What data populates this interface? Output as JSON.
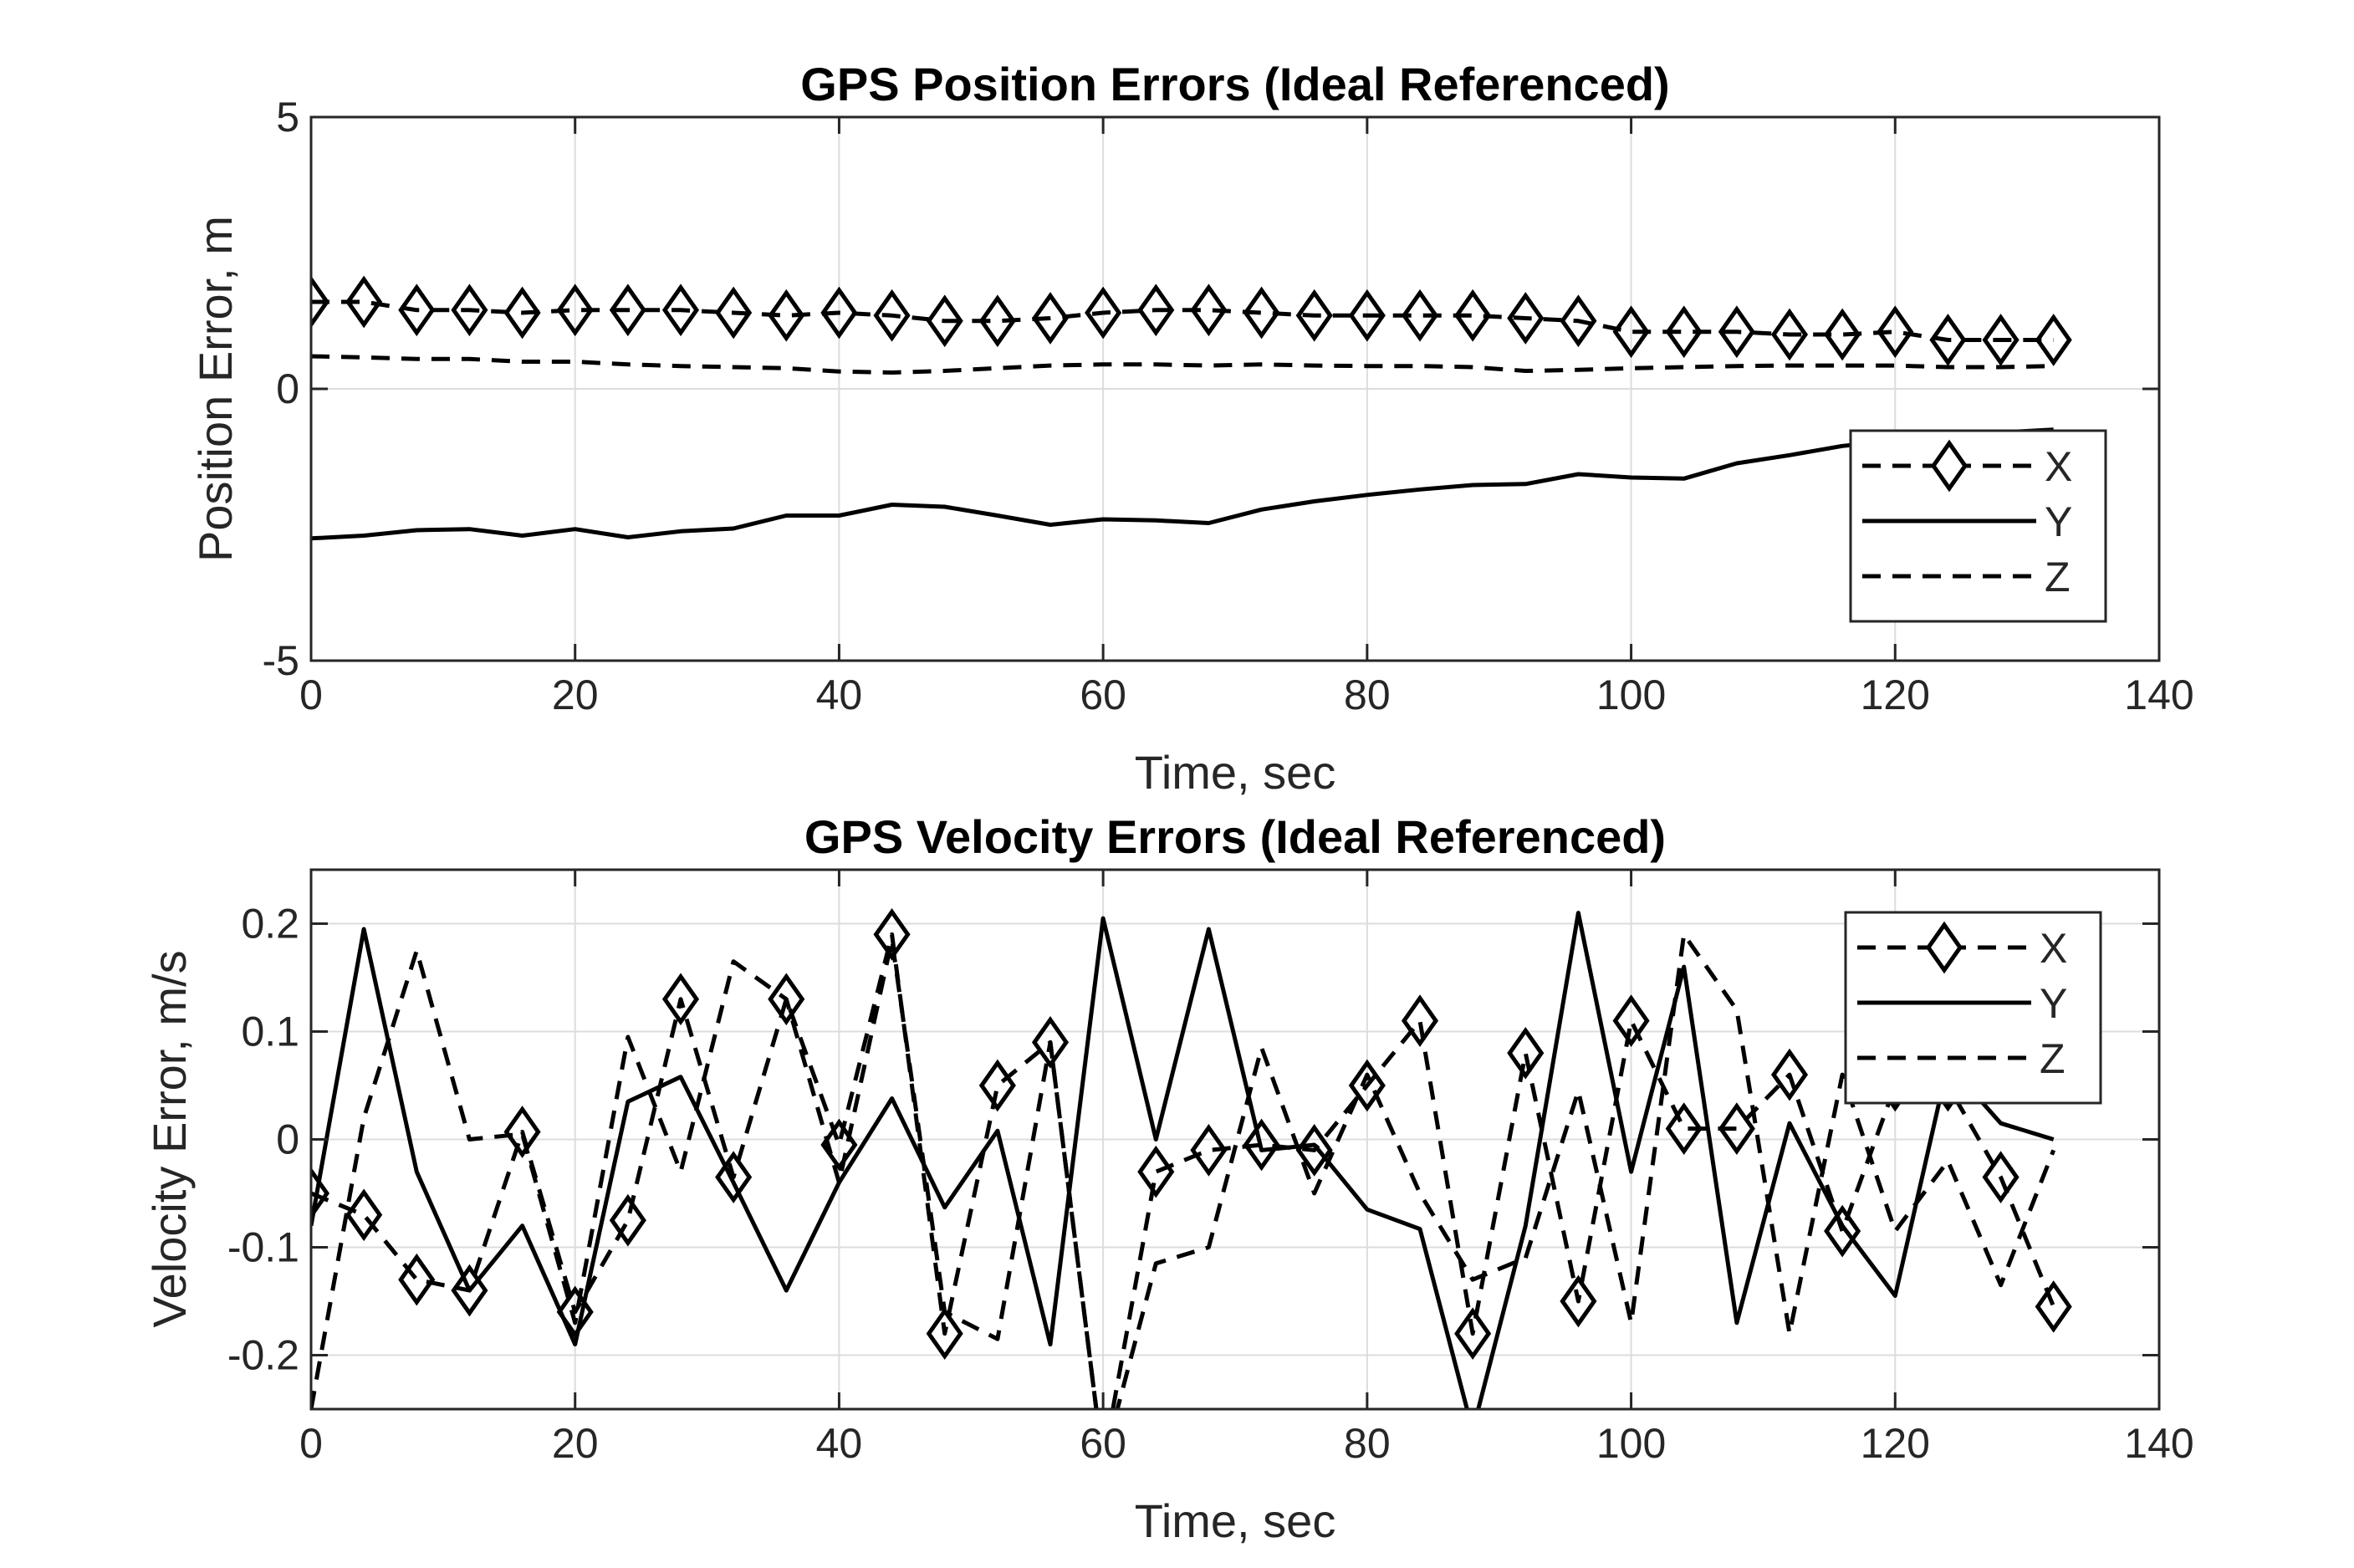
{
  "chart_data": [
    {
      "type": "line",
      "title": "GPS Position Errors (Ideal Referenced)",
      "xlabel": "Time, sec",
      "ylabel": "Position Error, m",
      "xlim": [
        0,
        140
      ],
      "ylim": [
        -5,
        5
      ],
      "xticks": [
        "0",
        "20",
        "40",
        "60",
        "80",
        "100",
        "120",
        "140"
      ],
      "yticks": [
        "-5",
        "0",
        "5"
      ],
      "grid": true,
      "legend_position": "lower-right",
      "x": [
        0,
        4,
        8,
        12,
        16,
        20,
        24,
        28,
        32,
        36,
        40,
        44,
        48,
        52,
        56,
        60,
        64,
        68,
        72,
        76,
        80,
        84,
        88,
        92,
        96,
        100,
        104,
        108,
        112,
        116,
        120,
        124,
        128,
        132
      ],
      "series": [
        {
          "name": "X",
          "style": "dashed-diamond",
          "values": [
            1.6,
            1.6,
            1.45,
            1.45,
            1.4,
            1.45,
            1.45,
            1.45,
            1.4,
            1.35,
            1.4,
            1.35,
            1.25,
            1.25,
            1.3,
            1.4,
            1.45,
            1.45,
            1.4,
            1.35,
            1.35,
            1.35,
            1.35,
            1.3,
            1.25,
            1.05,
            1.05,
            1.05,
            1.0,
            1.0,
            1.05,
            0.9,
            0.9,
            0.9
          ]
        },
        {
          "name": "Y",
          "style": "solid",
          "values": [
            -2.75,
            -2.7,
            -2.6,
            -2.58,
            -2.7,
            -2.58,
            -2.73,
            -2.62,
            -2.57,
            -2.33,
            -2.33,
            -2.13,
            -2.17,
            -2.33,
            -2.5,
            -2.4,
            -2.42,
            -2.47,
            -2.22,
            -2.07,
            -1.95,
            -1.85,
            -1.77,
            -1.75,
            -1.57,
            -1.63,
            -1.65,
            -1.37,
            -1.22,
            -1.05,
            -0.95,
            -0.88,
            -0.8,
            -0.75
          ]
        },
        {
          "name": "Z",
          "style": "dashed",
          "values": [
            0.6,
            0.58,
            0.55,
            0.55,
            0.5,
            0.5,
            0.45,
            0.42,
            0.4,
            0.38,
            0.32,
            0.3,
            0.33,
            0.38,
            0.43,
            0.45,
            0.45,
            0.43,
            0.45,
            0.43,
            0.42,
            0.42,
            0.4,
            0.33,
            0.35,
            0.38,
            0.4,
            0.42,
            0.43,
            0.43,
            0.43,
            0.4,
            0.4,
            0.42
          ]
        }
      ]
    },
    {
      "type": "line",
      "title": "GPS Velocity Errors (Ideal Referenced)",
      "xlabel": "Time, sec",
      "ylabel": "Velocity Error, m/s",
      "xlim": [
        0,
        140
      ],
      "ylim": [
        -0.25,
        0.25
      ],
      "xticks": [
        "0",
        "20",
        "40",
        "60",
        "80",
        "100",
        "120",
        "140"
      ],
      "yticks": [
        "-0.2",
        "-0.1",
        "0",
        "0.1",
        "0.2"
      ],
      "grid": true,
      "legend_position": "upper-right",
      "x": [
        0,
        4,
        8,
        12,
        16,
        20,
        24,
        28,
        32,
        36,
        40,
        44,
        48,
        52,
        56,
        60,
        64,
        68,
        72,
        76,
        80,
        84,
        88,
        92,
        96,
        100,
        104,
        108,
        112,
        116,
        120,
        124,
        128,
        132
      ],
      "series": [
        {
          "name": "X",
          "style": "dashed-diamond",
          "values": [
            -0.05,
            -0.07,
            -0.13,
            -0.14,
            0.007,
            -0.16,
            -0.075,
            0.13,
            -0.035,
            0.13,
            -0.005,
            0.19,
            -0.18,
            0.05,
            0.09,
            -0.3,
            -0.03,
            -0.01,
            -0.005,
            -0.01,
            0.05,
            0.11,
            -0.18,
            0.08,
            -0.15,
            0.11,
            0.01,
            0.01,
            0.06,
            -0.085,
            0.05,
            0.05,
            -0.035,
            -0.155
          ]
        },
        {
          "name": "Y",
          "style": "solid",
          "values": [
            -0.08,
            0.195,
            -0.03,
            -0.14,
            -0.08,
            -0.19,
            0.035,
            0.058,
            -0.04,
            -0.14,
            -0.04,
            0.038,
            -0.063,
            0.008,
            -0.19,
            0.205,
            0.0,
            0.195,
            -0.01,
            -0.005,
            -0.065,
            -0.083,
            -0.27,
            -0.08,
            0.21,
            -0.03,
            0.16,
            -0.17,
            0.015,
            -0.08,
            -0.145,
            0.07,
            0.015,
            0.0
          ]
        },
        {
          "name": "Z",
          "style": "dashed",
          "values": [
            -0.25,
            0.02,
            0.175,
            0.0,
            0.005,
            -0.17,
            0.095,
            -0.03,
            0.165,
            0.13,
            -0.04,
            0.185,
            -0.16,
            -0.185,
            0.09,
            -0.3,
            -0.115,
            -0.1,
            0.085,
            -0.05,
            0.06,
            -0.05,
            -0.13,
            -0.11,
            0.045,
            -0.17,
            0.19,
            0.12,
            -0.18,
            0.06,
            -0.085,
            -0.02,
            -0.135,
            -0.01
          ]
        }
      ]
    }
  ]
}
